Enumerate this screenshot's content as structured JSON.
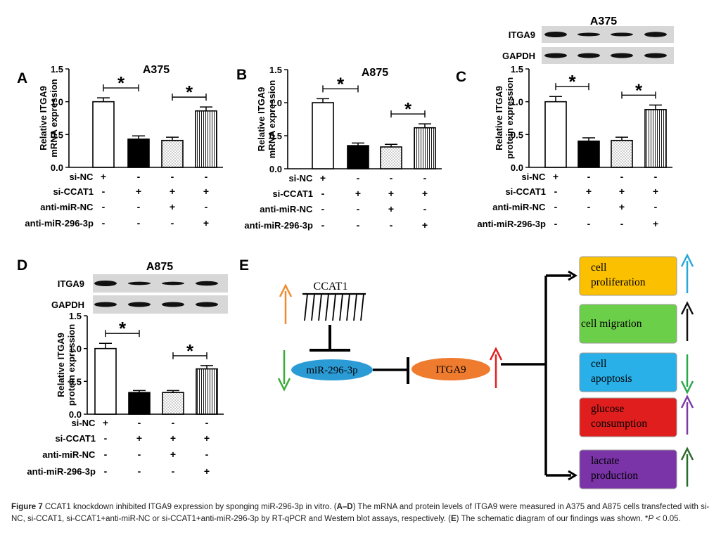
{
  "legend_rows": [
    "si-NC",
    "si-CCAT1",
    "anti-miR-NC",
    "anti-miR-296-3p"
  ],
  "chart_data": [
    {
      "panel": "A",
      "type": "bar",
      "title": "A375",
      "ylabel": "Relative ITGA9",
      "ylabel2": "mRNA expression",
      "ylim": [
        0,
        1.5
      ],
      "yticks": [
        "0.0",
        "0.5",
        "1.0",
        "1.5"
      ],
      "values": [
        1.0,
        0.43,
        0.41,
        0.86
      ],
      "errors": [
        0.06,
        0.05,
        0.05,
        0.06
      ],
      "signs": [
        [
          "+",
          "-",
          "-",
          "-"
        ],
        [
          "-",
          "+",
          "+",
          "+"
        ],
        [
          "-",
          "-",
          "+",
          "-"
        ],
        [
          "-",
          "-",
          "-",
          "+"
        ]
      ],
      "sig": [
        {
          "bars": [
            0,
            1
          ],
          "label": "*"
        },
        {
          "bars": [
            2,
            3
          ],
          "label": "*"
        }
      ]
    },
    {
      "panel": "B",
      "type": "bar",
      "title": "A875",
      "ylabel": "Relative ITGA9",
      "ylabel2": "mRNA expression",
      "ylim": [
        0,
        1.5
      ],
      "yticks": [
        "0.0",
        "0.5",
        "1.0",
        "1.5"
      ],
      "values": [
        1.0,
        0.35,
        0.33,
        0.62
      ],
      "errors": [
        0.06,
        0.04,
        0.04,
        0.06
      ],
      "signs": [
        [
          "+",
          "-",
          "-",
          "-"
        ],
        [
          "-",
          "+",
          "+",
          "+"
        ],
        [
          "-",
          "-",
          "+",
          "-"
        ],
        [
          "-",
          "-",
          "-",
          "+"
        ]
      ],
      "sig": [
        {
          "bars": [
            0,
            1
          ],
          "label": "*"
        },
        {
          "bars": [
            2,
            3
          ],
          "label": "*"
        }
      ]
    },
    {
      "panel": "C",
      "type": "bar",
      "title": "A375",
      "ylabel": "Relative ITGA9",
      "ylabel2": "protein expression",
      "ylim": [
        0,
        1.5
      ],
      "yticks": [
        "0.0",
        "0.5",
        "1.0",
        "1.5"
      ],
      "values": [
        1.0,
        0.4,
        0.41,
        0.88
      ],
      "errors": [
        0.08,
        0.05,
        0.05,
        0.07
      ],
      "signs": [
        [
          "+",
          "-",
          "-",
          "-"
        ],
        [
          "-",
          "+",
          "+",
          "+"
        ],
        [
          "-",
          "-",
          "+",
          "-"
        ],
        [
          "-",
          "-",
          "-",
          "+"
        ]
      ],
      "sig": [
        {
          "bars": [
            0,
            1
          ],
          "label": "*"
        },
        {
          "bars": [
            2,
            3
          ],
          "label": "*"
        }
      ],
      "blot_labels": [
        "ITGA9",
        "GAPDH"
      ]
    },
    {
      "panel": "D",
      "type": "bar",
      "title": "A875",
      "ylabel": "Relative ITGA9",
      "ylabel2": "protein expression",
      "ylim": [
        0,
        1.5
      ],
      "yticks": [
        "0.0",
        "0.5",
        "1.0",
        "1.5"
      ],
      "values": [
        1.0,
        0.33,
        0.33,
        0.69
      ],
      "errors": [
        0.08,
        0.03,
        0.03,
        0.05
      ],
      "signs": [
        [
          "+",
          "-",
          "-",
          "-"
        ],
        [
          "-",
          "+",
          "+",
          "+"
        ],
        [
          "-",
          "-",
          "+",
          "-"
        ],
        [
          "-",
          "-",
          "-",
          "+"
        ]
      ],
      "sig": [
        {
          "bars": [
            0,
            1
          ],
          "label": "*"
        },
        {
          "bars": [
            2,
            3
          ],
          "label": "*"
        }
      ],
      "blot_labels": [
        "ITGA9",
        "GAPDH"
      ]
    }
  ],
  "schematic": {
    "label": "E",
    "ccat1": "CCAT1",
    "mirna": "miR-296-3p",
    "itga9": "ITGA9",
    "outcomes": [
      {
        "line1": "cell",
        "line2": "proliferation",
        "color": "#fbc000",
        "arrow": "up",
        "arrow_color": "#29a8d8"
      },
      {
        "line1": "cell migration",
        "line2": "",
        "color": "#6ccf4a",
        "arrow": "up",
        "arrow_color": "#111111"
      },
      {
        "line1": "cell",
        "line2": "apoptosis",
        "color": "#29b0e8",
        "arrow": "down",
        "arrow_color": "#2aa84a"
      },
      {
        "line1": "glucose",
        "line2": "consumption",
        "color": "#e01e1e",
        "arrow": "up",
        "arrow_color": "#7a3aa8"
      },
      {
        "line1": "lactate",
        "line2": "production",
        "color": "#7a34a8",
        "arrow": "up",
        "arrow_color": "#2a6a2a"
      }
    ],
    "colors": {
      "mirna": "#2b9bd6",
      "itga9": "#ef7b2e",
      "ccat1_arrow": "#ef8a2e",
      "mirna_arrow": "#3aaa3a",
      "itga9_arrow": "#e02020"
    }
  },
  "caption": {
    "fig_label": "Figure 7",
    "text1": " CCAT1 knockdown inhibited ITGA9 expression by sponging miR-296-3p in vitro. (",
    "ref_ad": "A–D",
    "text2": ") The mRNA and protein levels of ITGA9 were measured in A375 and A875 cells transfected with si-NC, si-CCAT1, si-CCAT1+anti-miR-NC or si-CCAT1+anti-miR-296-3p by RT-qPCR and Western blot assays, respectively. (",
    "ref_e": "E",
    "text3": ") The schematic diagram of our findings was shown. *",
    "p_text": "P",
    "text4": " < 0.05."
  }
}
